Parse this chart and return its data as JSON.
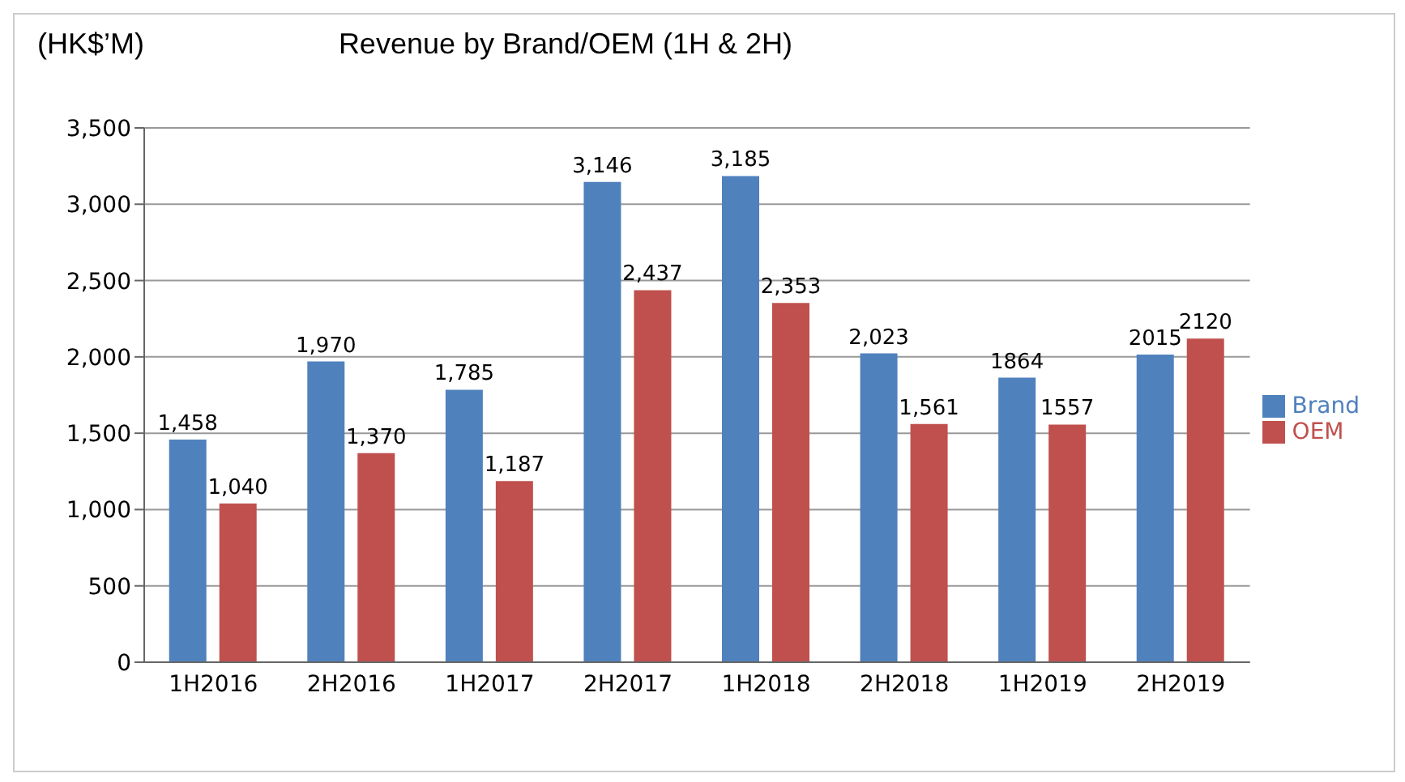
{
  "chart_data": {
    "type": "bar",
    "title": "Revenue by Brand/OEM (1H & 2H)",
    "ylabel": "(HK$’M)",
    "categories": [
      "1H2016",
      "2H2016",
      "1H2017",
      "2H2017",
      "1H2018",
      "2H2018",
      "1H2019",
      "2H2019"
    ],
    "series": [
      {
        "name": "Brand",
        "color": "#4f81bd",
        "values": [
          1458,
          1970,
          1785,
          3146,
          3185,
          2023,
          1864,
          2015
        ],
        "value_labels": [
          "1,458",
          "1,970",
          "1,785",
          "3,146",
          "3,185",
          "2,023",
          "1864",
          "2015"
        ]
      },
      {
        "name": "OEM",
        "color": "#c0504d",
        "values": [
          1040,
          1370,
          1187,
          2437,
          2353,
          1561,
          1557,
          2120
        ],
        "value_labels": [
          "1,040",
          "1,370",
          "1,187",
          "2,437",
          "2,353",
          "1,561",
          "1557",
          "2120"
        ]
      }
    ],
    "ylim": [
      0,
      3500
    ],
    "yticks": [
      0,
      500,
      {
        "value": 1000,
        "label": "1,000"
      },
      {
        "value": 1500,
        "label": "1,500"
      },
      {
        "value": 2000,
        "label": "2,000"
      },
      {
        "value": 2500,
        "label": "2,500"
      },
      {
        "value": 3000,
        "label": "3,000"
      },
      {
        "value": 3500,
        "label": "3,500"
      }
    ],
    "grid": "y",
    "legend": "right"
  }
}
